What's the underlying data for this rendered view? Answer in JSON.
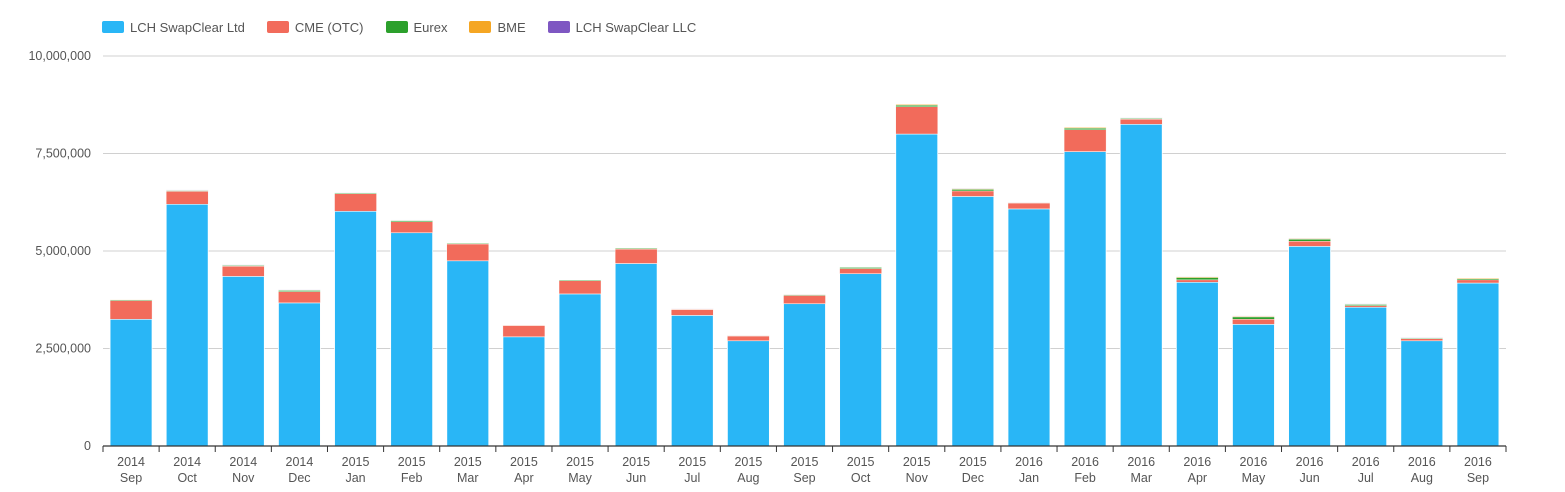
{
  "colors": {
    "LCH SwapClear Ltd": "#29b6f6",
    "CME (OTC)": "#f26b5b",
    "Eurex": "#2ca02c",
    "BME": "#f5a623",
    "LCH SwapClear LLC": "#7e57c2"
  },
  "chart_data": {
    "type": "bar",
    "stacked": true,
    "legend_position": "top-left",
    "grid": true,
    "categories": [
      [
        "2014",
        "Sep"
      ],
      [
        "2014",
        "Oct"
      ],
      [
        "2014",
        "Nov"
      ],
      [
        "2014",
        "Dec"
      ],
      [
        "2015",
        "Jan"
      ],
      [
        "2015",
        "Feb"
      ],
      [
        "2015",
        "Mar"
      ],
      [
        "2015",
        "Apr"
      ],
      [
        "2015",
        "May"
      ],
      [
        "2015",
        "Jun"
      ],
      [
        "2015",
        "Jul"
      ],
      [
        "2015",
        "Aug"
      ],
      [
        "2015",
        "Sep"
      ],
      [
        "2015",
        "Oct"
      ],
      [
        "2015",
        "Nov"
      ],
      [
        "2015",
        "Dec"
      ],
      [
        "2016",
        "Jan"
      ],
      [
        "2016",
        "Feb"
      ],
      [
        "2016",
        "Mar"
      ],
      [
        "2016",
        "Apr"
      ],
      [
        "2016",
        "May"
      ],
      [
        "2016",
        "Jun"
      ],
      [
        "2016",
        "Jul"
      ],
      [
        "2016",
        "Aug"
      ],
      [
        "2016",
        "Sep"
      ]
    ],
    "ylim": [
      0,
      10000000
    ],
    "yticks": [
      0,
      2500000,
      5000000,
      7500000,
      10000000
    ],
    "ytick_labels": [
      "0",
      "2,500,000",
      "5,000,000",
      "7,500,000",
      "10,000,000"
    ],
    "series": [
      {
        "name": "LCH SwapClear Ltd",
        "values": [
          3250000,
          6200000,
          4350000,
          3670000,
          6020000,
          5470000,
          4750000,
          2800000,
          3900000,
          4680000,
          3350000,
          2700000,
          3650000,
          4420000,
          8000000,
          6400000,
          6080000,
          7550000,
          8250000,
          4200000,
          3120000,
          5120000,
          3560000,
          2700000,
          4180000
        ]
      },
      {
        "name": "CME (OTC)",
        "values": [
          480000,
          330000,
          260000,
          290000,
          450000,
          280000,
          430000,
          290000,
          340000,
          370000,
          150000,
          120000,
          210000,
          130000,
          700000,
          140000,
          150000,
          560000,
          130000,
          60000,
          130000,
          130000,
          40000,
          50000,
          80000
        ]
      },
      {
        "name": "Eurex",
        "values": [
          20000,
          20000,
          20000,
          30000,
          20000,
          30000,
          20000,
          10000,
          20000,
          20000,
          10000,
          10000,
          20000,
          30000,
          40000,
          40000,
          10000,
          40000,
          20000,
          60000,
          60000,
          50000,
          30000,
          20000,
          30000
        ]
      },
      {
        "name": "BME",
        "values": [
          10000,
          10000,
          10000,
          10000,
          10000,
          10000,
          10000,
          5000,
          10000,
          10000,
          10000,
          10000,
          10000,
          10000,
          20000,
          20000,
          10000,
          20000,
          10000,
          20000,
          20000,
          20000,
          10000,
          10000,
          20000
        ]
      },
      {
        "name": "LCH SwapClear LLC",
        "values": [
          5000,
          5000,
          5000,
          5000,
          5000,
          5000,
          5000,
          5000,
          5000,
          5000,
          5000,
          5000,
          5000,
          5000,
          5000,
          5000,
          5000,
          5000,
          5000,
          5000,
          5000,
          5000,
          5000,
          5000,
          5000
        ]
      }
    ]
  }
}
